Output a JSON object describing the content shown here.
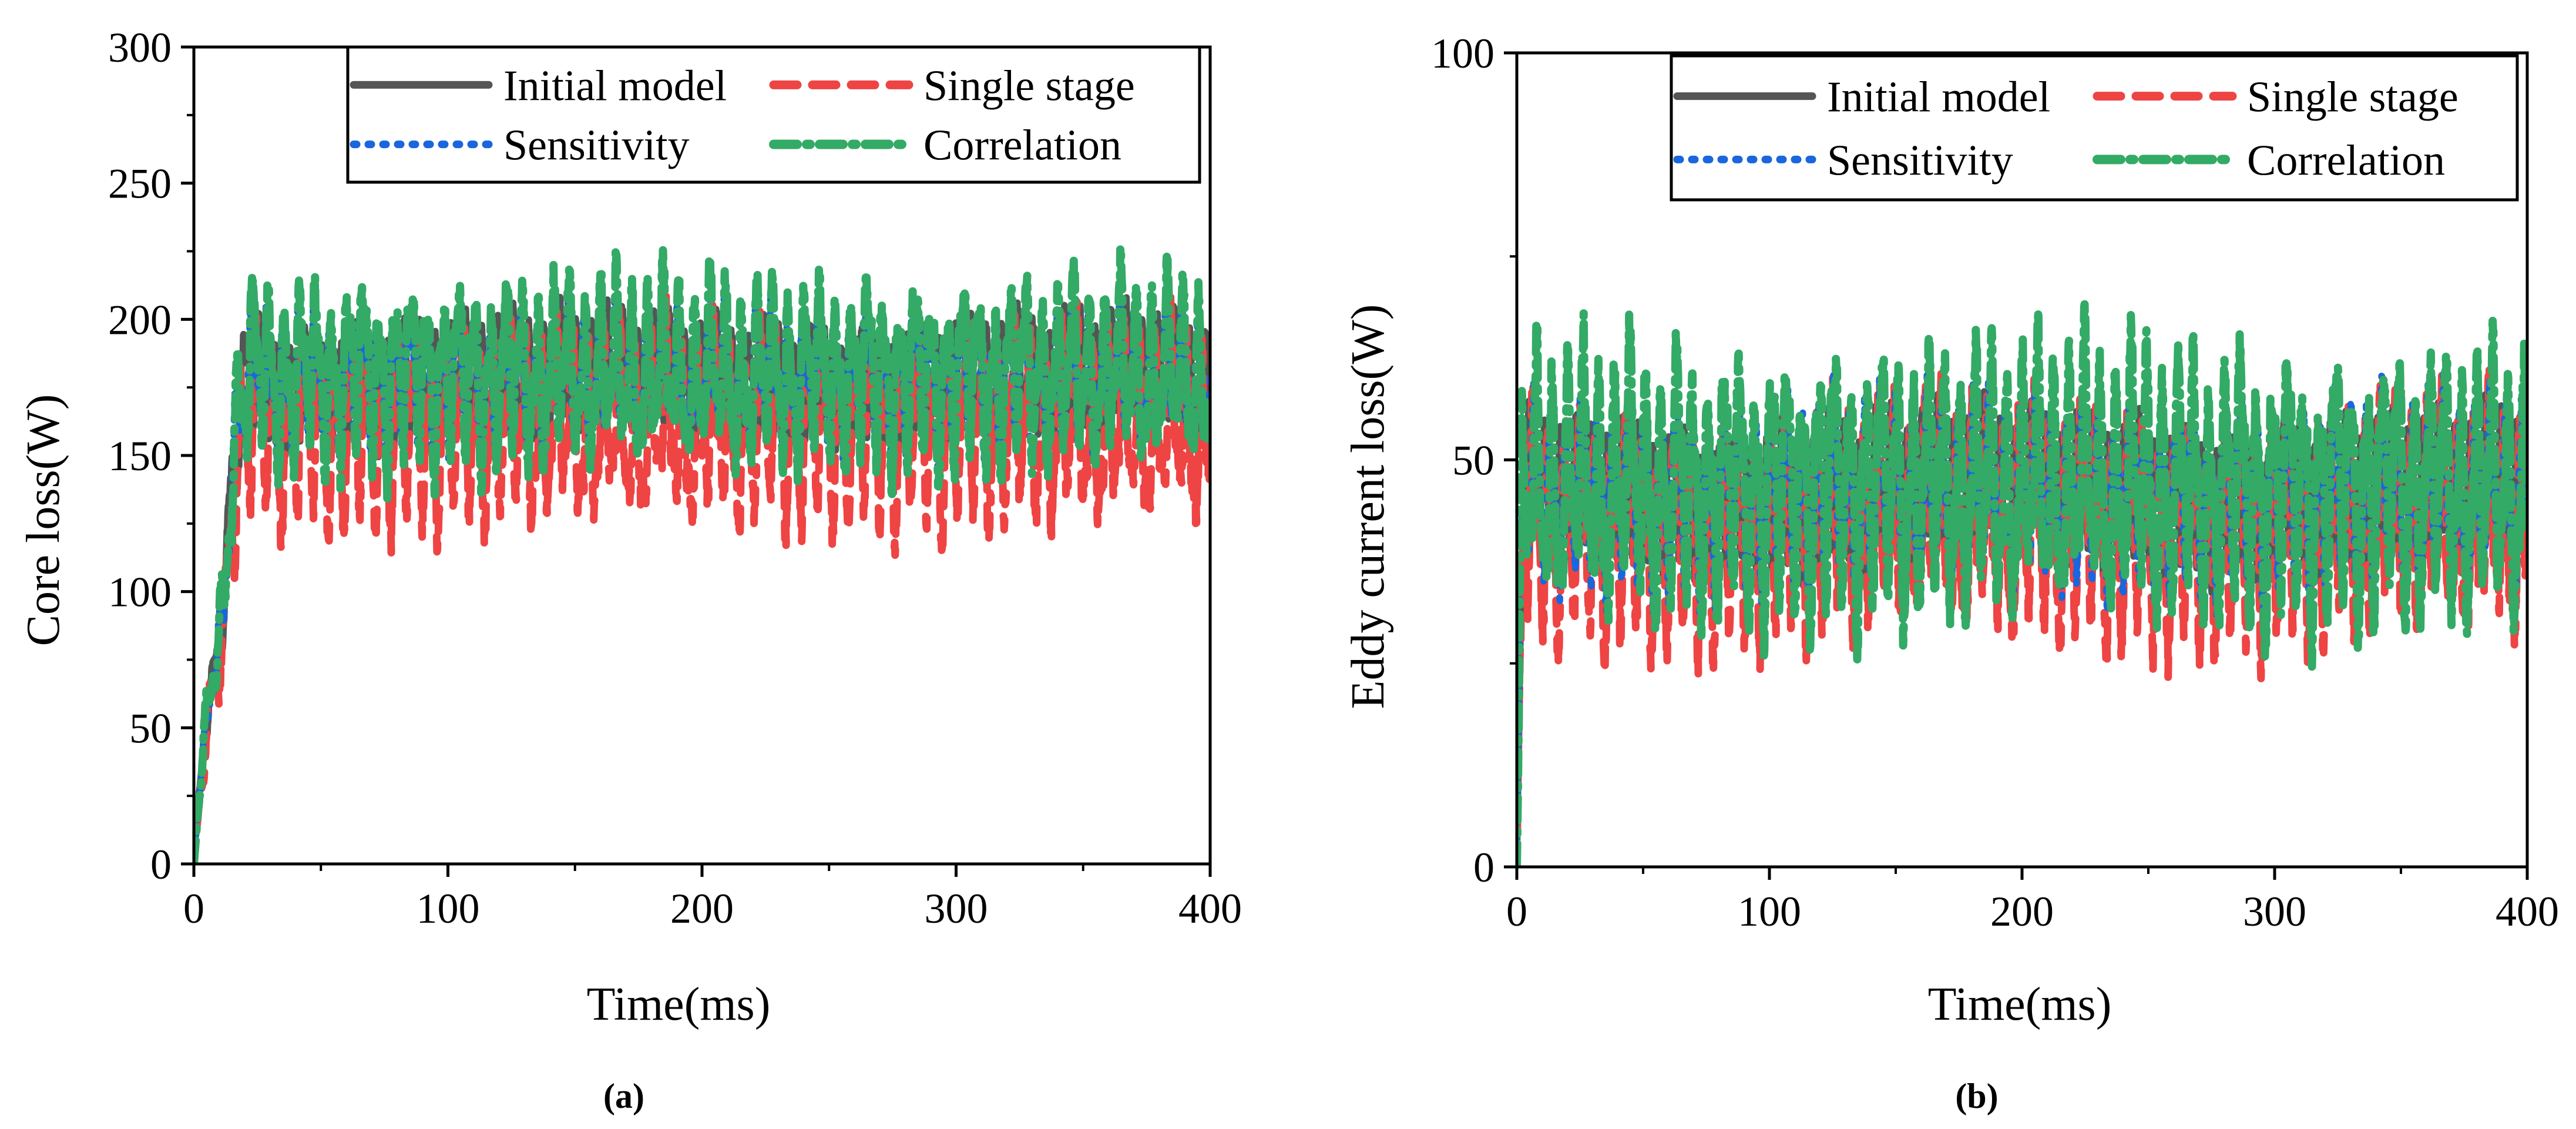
{
  "colors": {
    "initial": "#555555",
    "single": "#ee4444",
    "sensitivity": "#1a66dd",
    "correlation": "#33aa66"
  },
  "chart_data": [
    {
      "type": "line",
      "panel_label": "(a)",
      "xlabel": "Time(ms)",
      "ylabel": "Core loss(W)",
      "xlim": [
        0,
        400
      ],
      "ylim": [
        0,
        300
      ],
      "xticks": [
        "0",
        "100",
        "200",
        "300",
        "400"
      ],
      "yticks": [
        "0",
        "50",
        "100",
        "150",
        "200",
        "250",
        "300"
      ],
      "legend_position": "top-right",
      "series": [
        {
          "name": "Initial model",
          "key": "initial",
          "style": "solid",
          "t": [
            0,
            2,
            5,
            8,
            12,
            15,
            20,
            100,
            200,
            300,
            400
          ],
          "center": [
            0,
            25,
            50,
            70,
            95,
            150,
            178,
            178,
            178,
            178,
            178
          ],
          "amplitude": 25,
          "period_ms": 6.2
        },
        {
          "name": "Single stage",
          "key": "single",
          "style": "dash",
          "t": [
            0,
            2,
            5,
            8,
            12,
            15,
            20,
            100,
            200,
            300,
            400
          ],
          "center": [
            0,
            22,
            45,
            65,
            88,
            140,
            160,
            160,
            160,
            160,
            160
          ],
          "amplitude": 40,
          "period_ms": 6.2
        },
        {
          "name": "Sensitivity",
          "key": "sensitivity",
          "style": "dot",
          "t": [
            0,
            2,
            5,
            8,
            12,
            15,
            20,
            100,
            200,
            300,
            400
          ],
          "center": [
            0,
            25,
            50,
            70,
            95,
            150,
            178,
            178,
            178,
            178,
            178
          ],
          "amplitude": 28,
          "period_ms": 6.2
        },
        {
          "name": "Correlation",
          "key": "correlation",
          "style": "dashdot",
          "t": [
            0,
            2,
            5,
            8,
            12,
            15,
            20,
            100,
            200,
            300,
            400
          ],
          "center": [
            0,
            25,
            52,
            72,
            97,
            152,
            180,
            180,
            180,
            180,
            180
          ],
          "amplitude": 38,
          "period_ms": 6.2
        }
      ]
    },
    {
      "type": "line",
      "panel_label": "(b)",
      "xlabel": "Time(ms)",
      "ylabel": "Eddy current loss(W)",
      "xlim": [
        0,
        400
      ],
      "ylim": [
        0,
        100
      ],
      "xticks": [
        "0",
        "100",
        "200",
        "300",
        "400"
      ],
      "yticks": [
        "0",
        "50",
        "100"
      ],
      "legend_position": "top-right",
      "series": [
        {
          "name": "Initial model",
          "key": "initial",
          "style": "solid",
          "t": [
            0,
            1,
            2,
            4,
            400
          ],
          "center": [
            0,
            20,
            40,
            46,
            46
          ],
          "amplitude": 10,
          "period_ms": 6.2
        },
        {
          "name": "Single stage",
          "key": "single",
          "style": "dash",
          "t": [
            0,
            1,
            2,
            4,
            400
          ],
          "center": [
            0,
            18,
            36,
            42,
            42
          ],
          "amplitude": 16,
          "period_ms": 6.2
        },
        {
          "name": "Sensitivity",
          "key": "sensitivity",
          "style": "dot",
          "t": [
            0,
            1,
            2,
            4,
            400
          ],
          "center": [
            0,
            20,
            40,
            46,
            46
          ],
          "amplitude": 13,
          "period_ms": 6.2
        },
        {
          "name": "Correlation",
          "key": "correlation",
          "style": "dashdot",
          "t": [
            0,
            1,
            2,
            4,
            400
          ],
          "center": [
            0,
            21,
            42,
            47,
            47
          ],
          "amplitude": 18,
          "period_ms": 6.2
        }
      ]
    }
  ]
}
